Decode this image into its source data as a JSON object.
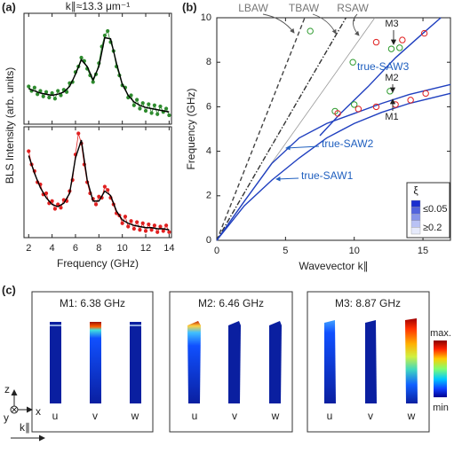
{
  "figure": {
    "panel_labels": [
      "(a)",
      "(b)",
      "(c)"
    ],
    "modes": [
      {
        "title": "M1: 6.38 GHz",
        "components": [
          "u",
          "v",
          "w"
        ]
      },
      {
        "title": "M2: 6.46 GHz",
        "components": [
          "u",
          "v",
          "w"
        ]
      },
      {
        "title": "M3: 8.87 GHz",
        "components": [
          "u",
          "v",
          "w"
        ]
      }
    ],
    "colorbar": {
      "max": "max.",
      "min": "min"
    },
    "axes": {
      "z": "z",
      "y": "y",
      "x": "x",
      "k": "k∥"
    }
  },
  "chart_data": [
    {
      "type": "line",
      "title": "k∥≈13.3 μm⁻¹",
      "ylabel": "BLS Intensity (arb. units)",
      "xlim": [
        1.6,
        14.2
      ],
      "ylim": [
        0,
        1
      ],
      "series": [
        {
          "color": "#2e8b2e",
          "style": "line-markers",
          "x": [
            2,
            2.25,
            2.5,
            2.75,
            3,
            3.25,
            3.5,
            3.75,
            4,
            4.25,
            4.5,
            4.75,
            5,
            5.25,
            5.5,
            5.75,
            6,
            6.25,
            6.5,
            6.75,
            7,
            7.25,
            7.5,
            7.75,
            8,
            8.25,
            8.5,
            8.75,
            9,
            9.25,
            9.5,
            9.75,
            10,
            10.25,
            10.5,
            10.75,
            11,
            11.25,
            11.5,
            11.75,
            12,
            12.25,
            12.5,
            12.75,
            13,
            13.25,
            13.5,
            13.75,
            14
          ],
          "values": [
            0.34,
            0.3,
            0.33,
            0.27,
            0.3,
            0.25,
            0.29,
            0.24,
            0.28,
            0.23,
            0.3,
            0.26,
            0.31,
            0.29,
            0.37,
            0.38,
            0.47,
            0.52,
            0.6,
            0.57,
            0.5,
            0.44,
            0.38,
            0.45,
            0.55,
            0.7,
            0.8,
            0.84,
            0.74,
            0.66,
            0.52,
            0.44,
            0.35,
            0.33,
            0.24,
            0.26,
            0.17,
            0.22,
            0.14,
            0.19,
            0.12,
            0.18,
            0.1,
            0.17,
            0.09,
            0.16,
            0.11,
            0.14,
            0.08
          ]
        },
        {
          "color": "#000000",
          "style": "line",
          "x": [
            2,
            2.5,
            3,
            3.5,
            4,
            4.5,
            5,
            5.5,
            6,
            6.5,
            7,
            7.5,
            8,
            8.5,
            9,
            9.5,
            10,
            10.5,
            11,
            11.5,
            12,
            12.5,
            13,
            13.5,
            14
          ],
          "values": [
            0.32,
            0.3,
            0.28,
            0.27,
            0.26,
            0.27,
            0.29,
            0.34,
            0.45,
            0.58,
            0.52,
            0.4,
            0.52,
            0.78,
            0.77,
            0.55,
            0.36,
            0.26,
            0.2,
            0.17,
            0.15,
            0.14,
            0.13,
            0.12,
            0.11
          ]
        }
      ]
    },
    {
      "type": "line",
      "xlabel": "Frequency (GHz)",
      "xlim": [
        1.6,
        14.2
      ],
      "ylim": [
        0,
        1
      ],
      "xticks": [
        2,
        4,
        6,
        8,
        10,
        12,
        14
      ],
      "series": [
        {
          "color": "#e02020",
          "style": "line-markers",
          "x": [
            2,
            2.25,
            2.5,
            2.75,
            3,
            3.25,
            3.5,
            3.75,
            4,
            4.25,
            4.5,
            4.75,
            5,
            5.25,
            5.5,
            5.75,
            6,
            6.25,
            6.5,
            6.75,
            7,
            7.25,
            7.5,
            7.75,
            8,
            8.25,
            8.5,
            8.75,
            9,
            9.25,
            9.5,
            9.75,
            10,
            10.25,
            10.5,
            10.75,
            11,
            11.25,
            11.5,
            11.75,
            12,
            12.25,
            12.5,
            12.75,
            13,
            13.25,
            13.5,
            13.75,
            14
          ],
          "values": [
            0.78,
            0.66,
            0.6,
            0.5,
            0.48,
            0.39,
            0.4,
            0.31,
            0.33,
            0.26,
            0.3,
            0.27,
            0.34,
            0.33,
            0.42,
            0.52,
            0.75,
            0.94,
            0.85,
            0.66,
            0.5,
            0.4,
            0.35,
            0.3,
            0.37,
            0.36,
            0.46,
            0.43,
            0.36,
            0.3,
            0.22,
            0.2,
            0.13,
            0.19,
            0.1,
            0.15,
            0.08,
            0.14,
            0.07,
            0.13,
            0.06,
            0.12,
            0.07,
            0.11,
            0.05,
            0.1,
            0.06,
            0.11,
            0.05
          ]
        },
        {
          "color": "#000000",
          "style": "line",
          "x": [
            2,
            2.5,
            3,
            3.5,
            4,
            4.5,
            5,
            5.5,
            6,
            6.5,
            7,
            7.5,
            8,
            8.5,
            9,
            9.5,
            10,
            10.5,
            11,
            11.5,
            12,
            12.5,
            13,
            13.5,
            14
          ],
          "values": [
            0.74,
            0.58,
            0.45,
            0.36,
            0.3,
            0.28,
            0.31,
            0.4,
            0.72,
            0.88,
            0.52,
            0.33,
            0.33,
            0.42,
            0.38,
            0.24,
            0.16,
            0.13,
            0.11,
            0.1,
            0.09,
            0.09,
            0.08,
            0.08,
            0.07
          ]
        }
      ]
    },
    {
      "type": "line",
      "xlabel": "Wavevector k∥",
      "ylabel": "Frequency (GHz)",
      "xlim": [
        0,
        17
      ],
      "ylim": [
        0,
        10
      ],
      "xticks": [
        0,
        5,
        10,
        15
      ],
      "yticks": [
        0,
        2,
        4,
        6,
        8,
        10
      ],
      "series": [
        {
          "name": "LBAW",
          "color": "#444444",
          "style": "dashed",
          "x": [
            0,
            6.4
          ],
          "values": [
            0,
            10
          ]
        },
        {
          "name": "TBAW",
          "color": "#333333",
          "style": "dashdot",
          "x": [
            0,
            9.4
          ],
          "values": [
            0,
            10
          ]
        },
        {
          "name": "RSAW",
          "color": "#999999",
          "style": "thin",
          "x": [
            0,
            11.5
          ],
          "values": [
            0,
            10
          ]
        },
        {
          "name": "true-SAW1",
          "color": "#1f3fbf",
          "style": "line",
          "x": [
            0,
            2,
            4,
            6,
            8,
            10,
            12,
            14,
            17
          ],
          "values": [
            0,
            1.55,
            2.7,
            3.7,
            4.6,
            5.25,
            5.75,
            6.15,
            6.6
          ]
        },
        {
          "name": "true-SAW2",
          "color": "#1f3fbf",
          "style": "line",
          "x": [
            0,
            2,
            4,
            6,
            8,
            10,
            12,
            14,
            17
          ],
          "values": [
            0,
            1.75,
            3.45,
            4.6,
            5.25,
            5.7,
            6.15,
            6.55,
            7.0
          ]
        },
        {
          "name": "true-SAW3",
          "color": "#1f3fbf",
          "style": "line",
          "x": [
            7.5,
            9,
            11,
            13,
            15,
            16.3
          ],
          "values": [
            4.7,
            5.7,
            6.9,
            8.2,
            9.3,
            10
          ]
        },
        {
          "color": "#2e9b2e",
          "style": "circles",
          "x": [
            6.8,
            8.6,
            10.0,
            12.6,
            9.9,
            12.7,
            13.3
          ],
          "values": [
            9.4,
            5.8,
            6.1,
            6.7,
            8.0,
            8.6,
            8.65
          ]
        },
        {
          "color": "#e02020",
          "style": "circles",
          "x": [
            8.8,
            10.3,
            11.6,
            13.0,
            14.1,
            15.2,
            11.6,
            13.5,
            15.1
          ],
          "values": [
            5.7,
            5.9,
            6.0,
            6.1,
            6.3,
            6.6,
            8.9,
            9.0,
            9.3
          ]
        }
      ],
      "annotations": [
        "M1",
        "M2",
        "M3"
      ],
      "colorbar": {
        "title": "ξ",
        "labels": [
          "≤0.05",
          "≥0.2"
        ]
      }
    }
  ]
}
